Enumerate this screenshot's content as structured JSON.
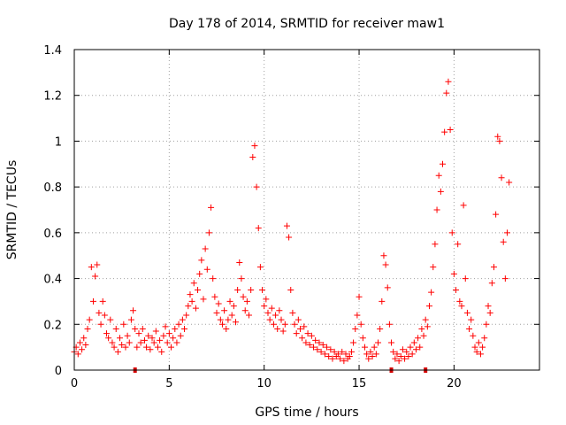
{
  "chart_data": {
    "type": "scatter",
    "title": "Day 178 of 2014, SRMTID for receiver maw1",
    "xlabel": "GPS time / hours",
    "ylabel": "SRMTID / TECUs",
    "xlim": [
      0,
      24.5
    ],
    "ylim": [
      0,
      1.4
    ],
    "xticks": [
      0,
      5,
      10,
      15,
      20
    ],
    "xtick_labels": [
      "0",
      "5",
      "10",
      "15",
      "20"
    ],
    "yticks": [
      0,
      0.2,
      0.4,
      0.6,
      0.8,
      1.0,
      1.2,
      1.4
    ],
    "ytick_labels": [
      "0",
      "0.2",
      "0.4",
      "0.6",
      "0.8",
      "1",
      "1.2",
      "1.4"
    ],
    "grid": true,
    "point_color": "#ff0000",
    "marker": "plus",
    "axis_markers_x": [
      3.2,
      16.7,
      18.5
    ],
    "series": [
      {
        "name": "maw1",
        "points": [
          [
            0.0,
            0.08
          ],
          [
            0.1,
            0.1
          ],
          [
            0.2,
            0.07
          ],
          [
            0.3,
            0.12
          ],
          [
            0.4,
            0.09
          ],
          [
            0.5,
            0.14
          ],
          [
            0.6,
            0.11
          ],
          [
            0.7,
            0.18
          ],
          [
            0.8,
            0.22
          ],
          [
            0.9,
            0.45
          ],
          [
            1.0,
            0.3
          ],
          [
            1.1,
            0.41
          ],
          [
            1.2,
            0.46
          ],
          [
            1.3,
            0.25
          ],
          [
            1.4,
            0.2
          ],
          [
            1.5,
            0.3
          ],
          [
            1.6,
            0.24
          ],
          [
            1.7,
            0.16
          ],
          [
            1.8,
            0.14
          ],
          [
            1.9,
            0.22
          ],
          [
            2.0,
            0.12
          ],
          [
            2.1,
            0.1
          ],
          [
            2.2,
            0.18
          ],
          [
            2.3,
            0.08
          ],
          [
            2.4,
            0.14
          ],
          [
            2.5,
            0.11
          ],
          [
            2.6,
            0.2
          ],
          [
            2.7,
            0.1
          ],
          [
            2.8,
            0.15
          ],
          [
            2.9,
            0.12
          ],
          [
            3.0,
            0.22
          ],
          [
            3.1,
            0.26
          ],
          [
            3.2,
            0.18
          ],
          [
            3.3,
            0.1
          ],
          [
            3.4,
            0.16
          ],
          [
            3.5,
            0.12
          ],
          [
            3.6,
            0.18
          ],
          [
            3.7,
            0.13
          ],
          [
            3.8,
            0.1
          ],
          [
            3.9,
            0.15
          ],
          [
            4.0,
            0.09
          ],
          [
            4.1,
            0.14
          ],
          [
            4.2,
            0.12
          ],
          [
            4.3,
            0.17
          ],
          [
            4.4,
            0.1
          ],
          [
            4.5,
            0.13
          ],
          [
            4.6,
            0.08
          ],
          [
            4.7,
            0.15
          ],
          [
            4.8,
            0.19
          ],
          [
            4.9,
            0.12
          ],
          [
            5.0,
            0.16
          ],
          [
            5.1,
            0.1
          ],
          [
            5.2,
            0.14
          ],
          [
            5.3,
            0.18
          ],
          [
            5.4,
            0.12
          ],
          [
            5.5,
            0.2
          ],
          [
            5.6,
            0.15
          ],
          [
            5.7,
            0.22
          ],
          [
            5.8,
            0.18
          ],
          [
            5.9,
            0.24
          ],
          [
            6.0,
            0.28
          ],
          [
            6.1,
            0.33
          ],
          [
            6.2,
            0.3
          ],
          [
            6.3,
            0.38
          ],
          [
            6.4,
            0.27
          ],
          [
            6.5,
            0.35
          ],
          [
            6.6,
            0.42
          ],
          [
            6.7,
            0.48
          ],
          [
            6.8,
            0.31
          ],
          [
            6.9,
            0.53
          ],
          [
            7.0,
            0.44
          ],
          [
            7.1,
            0.6
          ],
          [
            7.2,
            0.71
          ],
          [
            7.3,
            0.4
          ],
          [
            7.4,
            0.32
          ],
          [
            7.5,
            0.25
          ],
          [
            7.6,
            0.29
          ],
          [
            7.7,
            0.22
          ],
          [
            7.8,
            0.2
          ],
          [
            7.9,
            0.26
          ],
          [
            8.0,
            0.18
          ],
          [
            8.1,
            0.22
          ],
          [
            8.2,
            0.3
          ],
          [
            8.3,
            0.24
          ],
          [
            8.4,
            0.28
          ],
          [
            8.5,
            0.21
          ],
          [
            8.6,
            0.35
          ],
          [
            8.7,
            0.47
          ],
          [
            8.8,
            0.4
          ],
          [
            8.9,
            0.32
          ],
          [
            9.0,
            0.26
          ],
          [
            9.1,
            0.3
          ],
          [
            9.2,
            0.24
          ],
          [
            9.3,
            0.35
          ],
          [
            9.4,
            0.93
          ],
          [
            9.5,
            0.98
          ],
          [
            9.6,
            0.8
          ],
          [
            9.7,
            0.62
          ],
          [
            9.8,
            0.45
          ],
          [
            9.9,
            0.35
          ],
          [
            10.0,
            0.28
          ],
          [
            10.1,
            0.31
          ],
          [
            10.2,
            0.25
          ],
          [
            10.3,
            0.22
          ],
          [
            10.4,
            0.27
          ],
          [
            10.5,
            0.2
          ],
          [
            10.6,
            0.24
          ],
          [
            10.7,
            0.18
          ],
          [
            10.8,
            0.26
          ],
          [
            10.9,
            0.22
          ],
          [
            11.0,
            0.17
          ],
          [
            11.1,
            0.2
          ],
          [
            11.2,
            0.63
          ],
          [
            11.3,
            0.58
          ],
          [
            11.4,
            0.35
          ],
          [
            11.5,
            0.25
          ],
          [
            11.6,
            0.2
          ],
          [
            11.7,
            0.16
          ],
          [
            11.8,
            0.22
          ],
          [
            11.9,
            0.18
          ],
          [
            12.0,
            0.14
          ],
          [
            12.1,
            0.19
          ],
          [
            12.2,
            0.12
          ],
          [
            12.3,
            0.16
          ],
          [
            12.4,
            0.11
          ],
          [
            12.5,
            0.15
          ],
          [
            12.6,
            0.1
          ],
          [
            12.7,
            0.13
          ],
          [
            12.8,
            0.09
          ],
          [
            12.9,
            0.12
          ],
          [
            13.0,
            0.08
          ],
          [
            13.1,
            0.11
          ],
          [
            13.2,
            0.07
          ],
          [
            13.3,
            0.1
          ],
          [
            13.4,
            0.06
          ],
          [
            13.5,
            0.09
          ],
          [
            13.6,
            0.05
          ],
          [
            13.7,
            0.08
          ],
          [
            13.8,
            0.06
          ],
          [
            13.9,
            0.07
          ],
          [
            14.0,
            0.05
          ],
          [
            14.1,
            0.08
          ],
          [
            14.2,
            0.04
          ],
          [
            14.3,
            0.07
          ],
          [
            14.4,
            0.05
          ],
          [
            14.5,
            0.06
          ],
          [
            14.6,
            0.08
          ],
          [
            14.7,
            0.12
          ],
          [
            14.8,
            0.18
          ],
          [
            14.9,
            0.24
          ],
          [
            15.0,
            0.32
          ],
          [
            15.1,
            0.2
          ],
          [
            15.2,
            0.14
          ],
          [
            15.3,
            0.1
          ],
          [
            15.4,
            0.07
          ],
          [
            15.5,
            0.05
          ],
          [
            15.6,
            0.08
          ],
          [
            15.7,
            0.06
          ],
          [
            15.8,
            0.1
          ],
          [
            15.9,
            0.07
          ],
          [
            16.0,
            0.12
          ],
          [
            16.1,
            0.18
          ],
          [
            16.2,
            0.3
          ],
          [
            16.3,
            0.5
          ],
          [
            16.4,
            0.46
          ],
          [
            16.5,
            0.36
          ],
          [
            16.6,
            0.2
          ],
          [
            16.7,
            0.12
          ],
          [
            16.8,
            0.08
          ],
          [
            16.9,
            0.05
          ],
          [
            17.0,
            0.07
          ],
          [
            17.1,
            0.04
          ],
          [
            17.2,
            0.06
          ],
          [
            17.3,
            0.09
          ],
          [
            17.4,
            0.05
          ],
          [
            17.5,
            0.08
          ],
          [
            17.6,
            0.06
          ],
          [
            17.7,
            0.1
          ],
          [
            17.8,
            0.07
          ],
          [
            17.9,
            0.12
          ],
          [
            18.0,
            0.09
          ],
          [
            18.1,
            0.14
          ],
          [
            18.2,
            0.1
          ],
          [
            18.3,
            0.18
          ],
          [
            18.4,
            0.15
          ],
          [
            18.5,
            0.22
          ],
          [
            18.6,
            0.19
          ],
          [
            18.7,
            0.28
          ],
          [
            18.8,
            0.34
          ],
          [
            18.9,
            0.45
          ],
          [
            19.0,
            0.55
          ],
          [
            19.1,
            0.7
          ],
          [
            19.2,
            0.85
          ],
          [
            19.3,
            0.78
          ],
          [
            19.4,
            0.9
          ],
          [
            19.5,
            1.04
          ],
          [
            19.6,
            1.21
          ],
          [
            19.7,
            1.26
          ],
          [
            19.8,
            1.05
          ],
          [
            19.9,
            0.6
          ],
          [
            20.0,
            0.42
          ],
          [
            20.1,
            0.35
          ],
          [
            20.2,
            0.55
          ],
          [
            20.3,
            0.3
          ],
          [
            20.4,
            0.28
          ],
          [
            20.5,
            0.72
          ],
          [
            20.6,
            0.4
          ],
          [
            20.7,
            0.25
          ],
          [
            20.8,
            0.18
          ],
          [
            20.9,
            0.22
          ],
          [
            21.0,
            0.15
          ],
          [
            21.1,
            0.1
          ],
          [
            21.2,
            0.08
          ],
          [
            21.3,
            0.12
          ],
          [
            21.4,
            0.07
          ],
          [
            21.5,
            0.1
          ],
          [
            21.6,
            0.14
          ],
          [
            21.7,
            0.2
          ],
          [
            21.8,
            0.28
          ],
          [
            21.9,
            0.25
          ],
          [
            22.0,
            0.38
          ],
          [
            22.1,
            0.45
          ],
          [
            22.2,
            0.68
          ],
          [
            22.3,
            1.02
          ],
          [
            22.4,
            1.0
          ],
          [
            22.5,
            0.84
          ],
          [
            22.6,
            0.56
          ],
          [
            22.7,
            0.4
          ],
          [
            22.8,
            0.6
          ],
          [
            22.9,
            0.82
          ]
        ]
      }
    ]
  }
}
